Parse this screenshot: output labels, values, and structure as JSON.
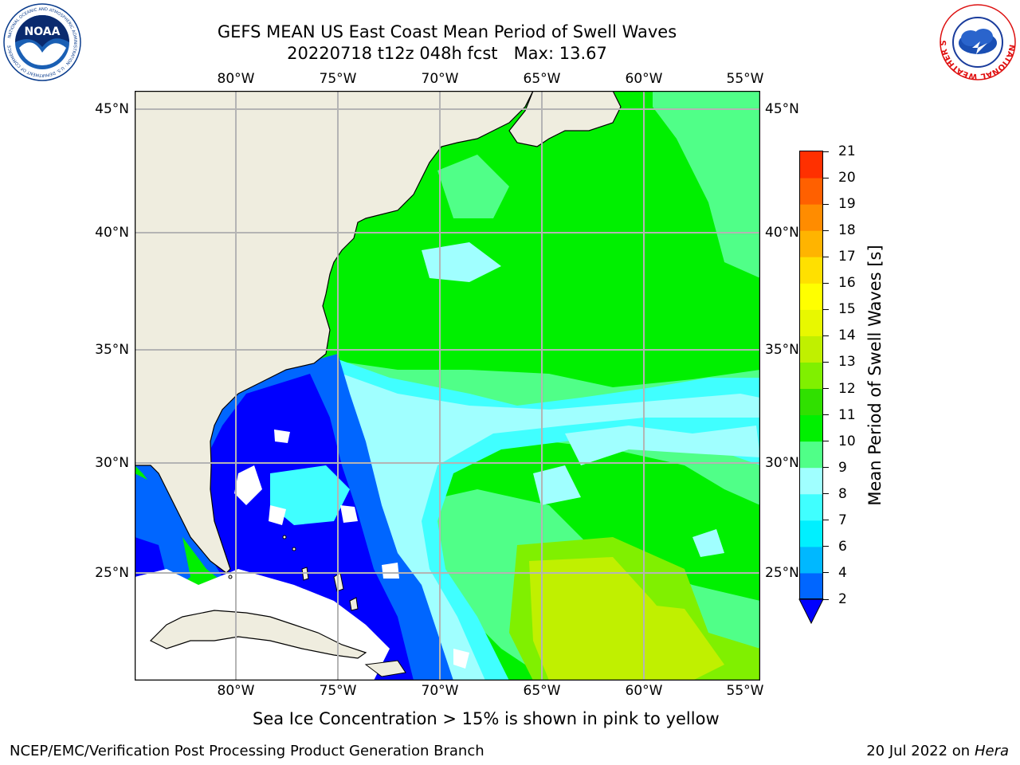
{
  "title": {
    "line1": "GEFS MEAN US East Coast Mean Period of Swell Waves",
    "line2": "20220718 t12z 048h fcst   Max: 13.67"
  },
  "logos": {
    "noaa_text": "NOAA",
    "noaa_ring_text": "NATIONAL OCEANIC AND ATMOSPHERIC ADMINISTRATION · U.S. DEPARTMENT OF COMMERCE",
    "nws_ring_text": "NATIONAL WEATHER SERVICE"
  },
  "map": {
    "lon_labels": [
      "80°W",
      "75°W",
      "70°W",
      "65°W",
      "60°W",
      "55°W"
    ],
    "lat_labels": [
      "45°N",
      "40°N",
      "35°N",
      "30°N",
      "25°N"
    ],
    "colors": {
      "land": "#efeddf",
      "missing": "#ffffff",
      "grid": "#b4b4b4",
      "coast": "#000000"
    }
  },
  "colorbar": {
    "label": "Mean Period of Swell Waves [s]",
    "ticks": [
      "2",
      "4",
      "6",
      "7",
      "8",
      "9",
      "10",
      "11",
      "12",
      "13",
      "14",
      "15",
      "16",
      "17",
      "18",
      "19",
      "20",
      "21"
    ],
    "colors": [
      "#0066ff",
      "#00b8ff",
      "#00f0ff",
      "#40ffff",
      "#a0ffff",
      "#50ff88",
      "#00f000",
      "#30e000",
      "#80f000",
      "#c0f000",
      "#e8f800",
      "#ffff00",
      "#ffe000",
      "#ffb400",
      "#ff8c00",
      "#ff6000",
      "#ff3000",
      "#ff0000"
    ],
    "under_color": "#0000ff"
  },
  "notes": {
    "ice": "Sea Ice Concentration > 15% is shown in pink to yellow",
    "credit": "NCEP/EMC/Verification Post Processing Product Generation Branch",
    "date": "20 Jul 2022 on ",
    "host": "Hera"
  }
}
